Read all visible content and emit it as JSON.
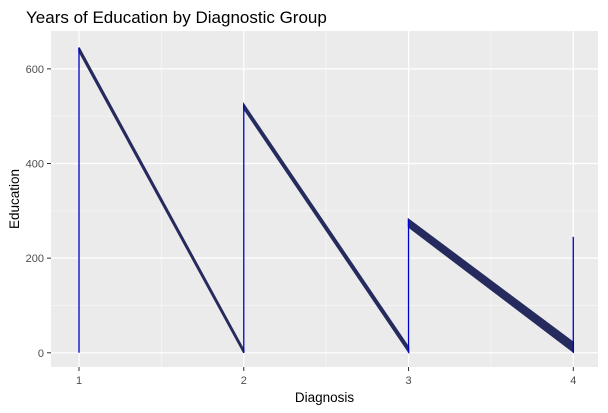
{
  "chart_data": {
    "type": "area",
    "title": "Years of Education by Diagnostic Group",
    "xlabel": "Diagnosis",
    "ylabel": "Education",
    "xlim": [
      0.83,
      4.15
    ],
    "ylim": [
      -30,
      680
    ],
    "x_ticks": [
      1,
      2,
      3,
      4
    ],
    "y_ticks": [
      0,
      200,
      400,
      600
    ],
    "grid": true,
    "legend": "none",
    "colors": {
      "panel_bg": "#ebebeb",
      "grid_major": "#ffffff",
      "grid_minor": "#f4f4f4",
      "fill": "#262b5e",
      "outline": "#0000cd"
    },
    "segments": [
      {
        "x_start": 1,
        "y_top_start": 645,
        "y_bottom_start": 637,
        "x_end": 2,
        "y_top_end": 6,
        "y_bottom_end": 0
      },
      {
        "x_start": 2,
        "y_top_start": 525,
        "y_bottom_start": 516,
        "x_end": 3,
        "y_top_end": 12,
        "y_bottom_end": 2
      },
      {
        "x_start": 3,
        "y_top_start": 282,
        "y_bottom_start": 266,
        "x_end": 4,
        "y_top_end": 22,
        "y_bottom_end": 2
      }
    ],
    "spikes": [
      {
        "x": 1,
        "y": 645
      },
      {
        "x": 2,
        "y": 525
      },
      {
        "x": 3,
        "y": 282
      },
      {
        "x": 4,
        "y": 245
      }
    ]
  }
}
